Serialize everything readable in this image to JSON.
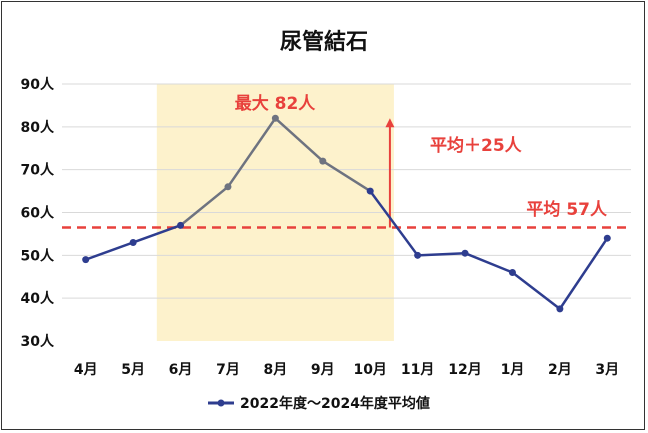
{
  "chart_data": {
    "type": "line",
    "title": "尿管結石",
    "xlabel": "",
    "ylabel": "",
    "categories": [
      "4月",
      "5月",
      "6月",
      "7月",
      "8月",
      "9月",
      "10月",
      "11月",
      "12月",
      "1月",
      "2月",
      "3月"
    ],
    "y_ticks": [
      "30人",
      "40人",
      "50人",
      "60人",
      "70人",
      "80人",
      "90人"
    ],
    "ylim": [
      30,
      90
    ],
    "grid": true,
    "series": [
      {
        "name": "2022年度～2024年度平均値",
        "values": [
          49,
          53,
          57,
          66,
          82,
          72,
          65,
          50,
          50.5,
          46,
          37.5,
          54
        ]
      }
    ],
    "highlight_range": [
      "6月",
      "10月"
    ],
    "average_line": 56.5,
    "annotations": {
      "peak": "最大 82人",
      "above_average": "平均＋25人",
      "average": "平均 57人"
    },
    "legend_position": "bottom",
    "colors": {
      "series": "#2e3d8f",
      "highlight_segment": "#6e7380",
      "highlight_band": "#fdf2cc",
      "annotation": "#e8413c",
      "grid": "#d9d9d9"
    }
  }
}
